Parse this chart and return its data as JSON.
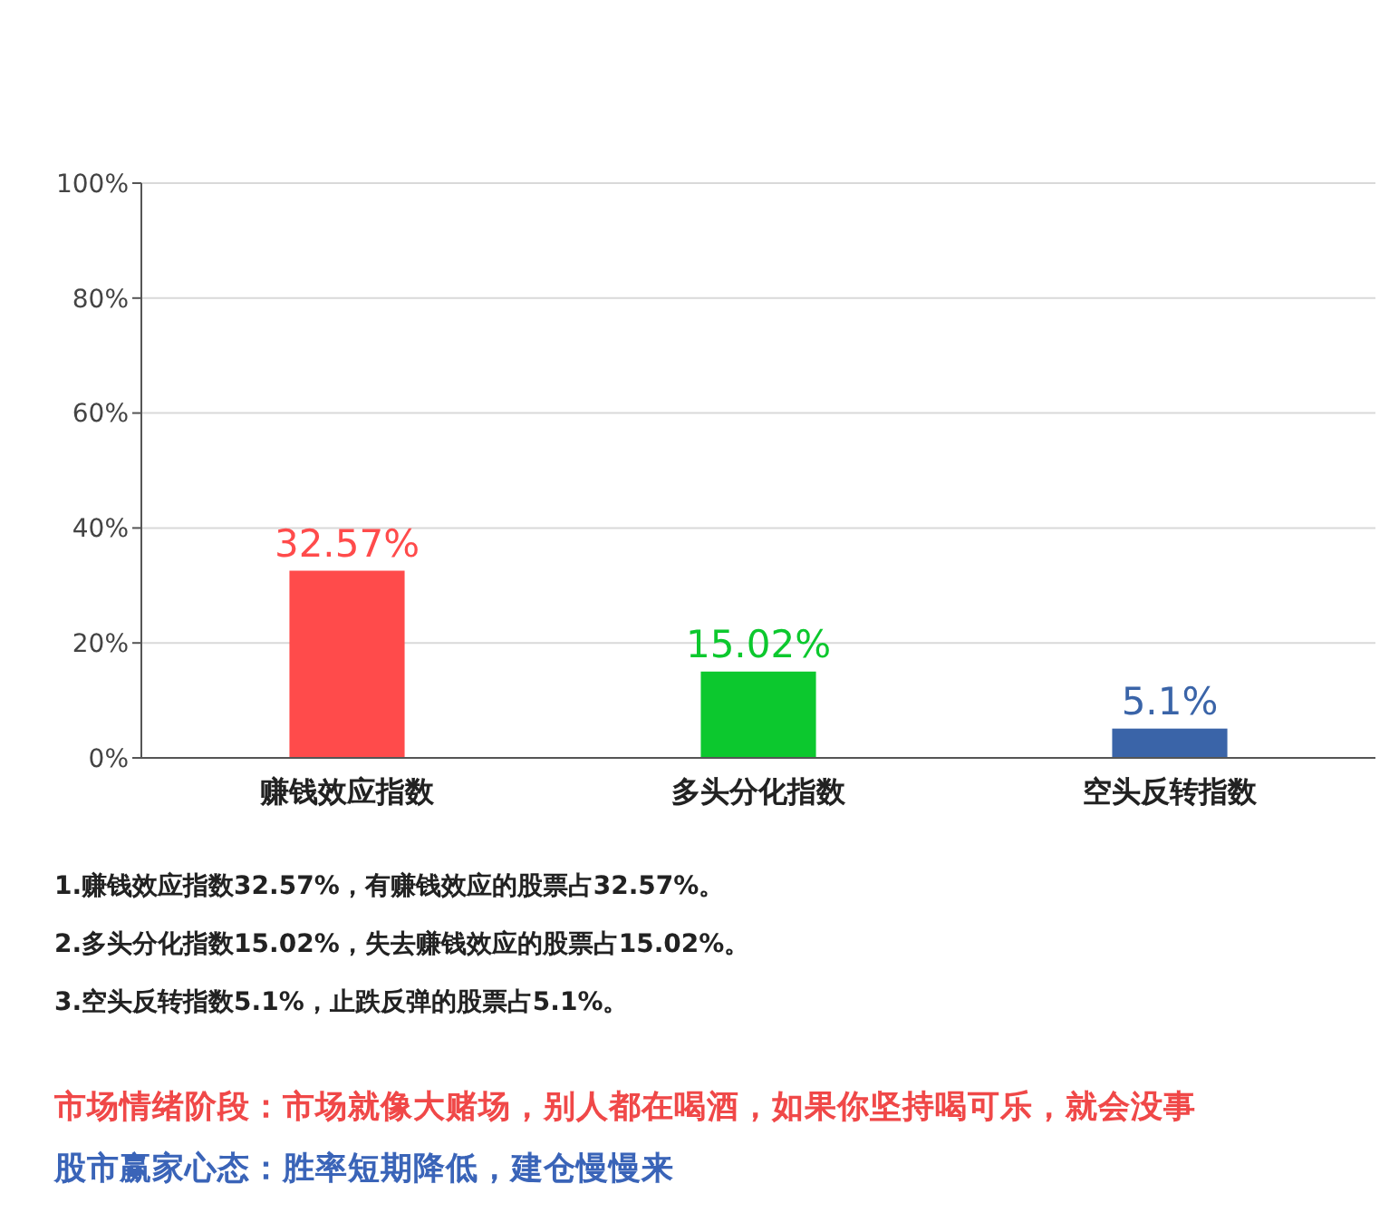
{
  "chart_data": {
    "type": "bar",
    "categories": [
      "赚钱效应指数",
      "多头分化指数",
      "空头反转指数"
    ],
    "values": [
      32.57,
      15.02,
      5.1
    ],
    "colors": [
      "#ff4b4b",
      "#0cc82e",
      "#3a64a8"
    ],
    "value_labels": [
      "32.57%",
      "15.02%",
      "5.1%"
    ],
    "ylim": [
      0,
      100
    ],
    "yticks": [
      {
        "value": 0,
        "label": "0%"
      },
      {
        "value": 20,
        "label": "20%"
      },
      {
        "value": 40,
        "label": "40%"
      },
      {
        "value": 60,
        "label": "60%"
      },
      {
        "value": 80,
        "label": "80%"
      },
      {
        "value": 100,
        "label": "100%"
      }
    ],
    "grid": "y",
    "annotations": [
      "1.赚钱效应指数32.57%，有赚钱效应的股票占32.57%。",
      "2.多头分化指数15.02%，失去赚钱效应的股票占15.02%。",
      "3.空头反转指数5.1%，止跌反弹的股票占5.1%。",
      "市场情绪阶段：市场就像大赌场，别人都在喝酒，如果你坚持喝可乐，就会没事",
      "股市赢家心态：胜率短期降低，建仓慢慢来"
    ]
  }
}
